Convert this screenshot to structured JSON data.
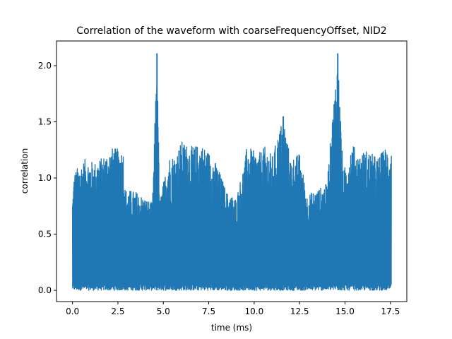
{
  "chart_data": {
    "type": "line",
    "title": "Correlation of the waveform with coarseFrequencyOffset, NID2",
    "xlabel": "time (ms)",
    "ylabel": "correlation",
    "xlim": [
      -0.88,
      18.4
    ],
    "ylim": [
      -0.1,
      2.22
    ],
    "xticks": [
      0.0,
      2.5,
      5.0,
      7.5,
      10.0,
      12.5,
      15.0,
      17.5
    ],
    "xtick_labels": [
      "0.0",
      "2.5",
      "5.0",
      "7.5",
      "10.0",
      "12.5",
      "15.0",
      "17.5"
    ],
    "yticks": [
      0.0,
      0.5,
      1.0,
      1.5,
      2.0
    ],
    "ytick_labels": [
      "0.0",
      "0.5",
      "1.0",
      "1.5",
      "2.0"
    ],
    "grid": false,
    "series": [
      {
        "color": "#1f77b4",
        "x_range": [
          0.0,
          17.55
        ],
        "min_value": 0.0,
        "baseline": 0.04,
        "envelope": [
          [
            0.0,
            0.83
          ],
          [
            0.1,
            1.05
          ],
          [
            0.3,
            1.1
          ],
          [
            0.7,
            1.17
          ],
          [
            1.2,
            1.14
          ],
          [
            1.6,
            1.18
          ],
          [
            2.2,
            1.27
          ],
          [
            2.8,
            1.25
          ],
          [
            2.9,
            0.9
          ],
          [
            3.5,
            0.88
          ],
          [
            4.0,
            0.82
          ],
          [
            4.4,
            0.78
          ],
          [
            4.65,
            2.11
          ],
          [
            4.8,
            0.8
          ],
          [
            5.3,
            1.19
          ],
          [
            5.7,
            1.21
          ],
          [
            6.0,
            1.33
          ],
          [
            6.5,
            1.28
          ],
          [
            7.1,
            1.3
          ],
          [
            7.6,
            1.22
          ],
          [
            8.0,
            1.1
          ],
          [
            8.5,
            0.87
          ],
          [
            9.0,
            0.82
          ],
          [
            9.5,
            1.16
          ],
          [
            9.6,
            1.29
          ],
          [
            10.2,
            1.21
          ],
          [
            10.6,
            1.28
          ],
          [
            11.0,
            1.2
          ],
          [
            11.6,
            1.55
          ],
          [
            12.0,
            1.17
          ],
          [
            12.5,
            1.22
          ],
          [
            12.9,
            0.85
          ],
          [
            13.5,
            0.9
          ],
          [
            14.0,
            0.95
          ],
          [
            14.6,
            2.11
          ],
          [
            14.9,
            1.05
          ],
          [
            15.4,
            1.32
          ],
          [
            15.7,
            1.21
          ],
          [
            16.2,
            1.25
          ],
          [
            16.8,
            1.18
          ],
          [
            17.2,
            1.27
          ],
          [
            17.55,
            1.26
          ]
        ],
        "peaks": [
          {
            "x": 4.65,
            "y": 2.11
          },
          {
            "x": 11.6,
            "y": 1.55
          },
          {
            "x": 14.6,
            "y": 2.11
          }
        ]
      }
    ]
  }
}
